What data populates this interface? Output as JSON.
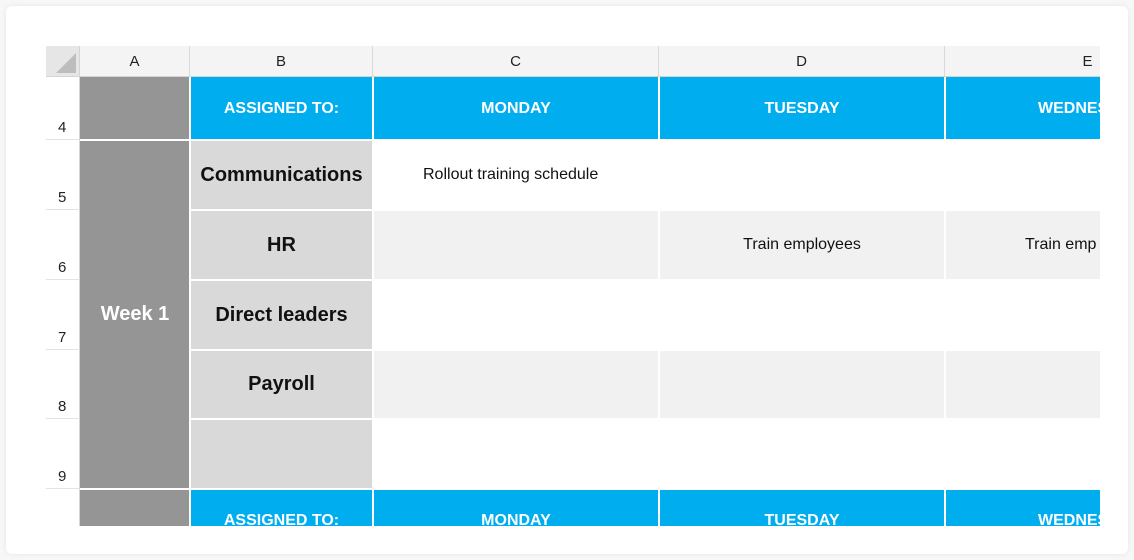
{
  "columns": [
    "A",
    "B",
    "C",
    "D",
    "E"
  ],
  "rows": [
    "4",
    "5",
    "6",
    "7",
    "8",
    "9"
  ],
  "header_row": {
    "assigned": "ASSIGNED TO:",
    "days": [
      "MONDAY",
      "TUESDAY",
      "WEDNES"
    ]
  },
  "week_label": "Week 1",
  "departments": [
    "Communications",
    "HR",
    "Direct leaders",
    "Payroll",
    ""
  ],
  "tasks": {
    "communications_monday": "Rollout training schedule",
    "hr_tuesday": "Train employees",
    "hr_wednesday": "Train emp"
  },
  "colors": {
    "header_blue": "#00aeef",
    "week_grey": "#959595",
    "dept_grey": "#d9d9d9",
    "alt_row": "#f1f1f1"
  }
}
